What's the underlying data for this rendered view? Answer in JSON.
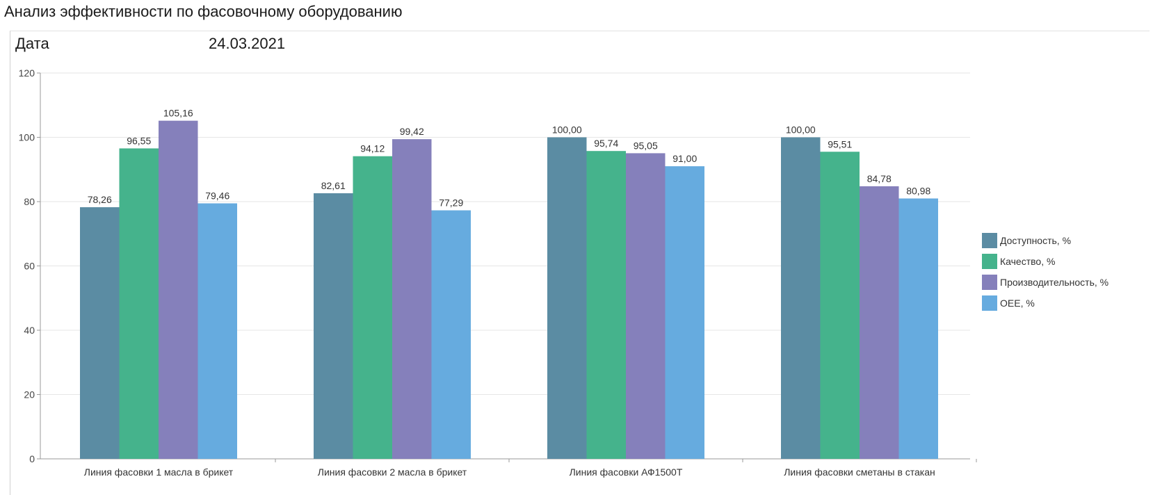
{
  "report": {
    "title": "Анализ эффективности по фасовочному оборудованию",
    "date_label": "Дата",
    "date_value": "24.03.2021"
  },
  "chart_data": {
    "type": "bar",
    "categories": [
      "Линия фасовки 1 масла в брикет",
      "Линия фасовки 2 масла в брикет",
      "Линия фасовки АФ1500Т",
      "Линия фасовки сметаны в стакан"
    ],
    "series": [
      {
        "name": "Доступность, %",
        "color": "#5b8ca3",
        "values": [
          78.26,
          82.61,
          100.0,
          100.0
        ],
        "labels": [
          "78,26",
          "82,61",
          "100,00",
          "100,00"
        ]
      },
      {
        "name": "Качество, %",
        "color": "#45b38c",
        "values": [
          96.55,
          94.12,
          95.74,
          95.51
        ],
        "labels": [
          "96,55",
          "94,12",
          "95,74",
          "95,51"
        ]
      },
      {
        "name": "Производительность, %",
        "color": "#8580bb",
        "values": [
          105.16,
          99.42,
          95.05,
          84.78
        ],
        "labels": [
          "105,16",
          "99,42",
          "95,05",
          "84,78"
        ]
      },
      {
        "name": "OEE, %",
        "color": "#66abdf",
        "values": [
          79.46,
          77.29,
          91.0,
          80.98
        ],
        "labels": [
          "79,46",
          "77,29",
          "91,00",
          "80,98"
        ]
      }
    ],
    "ylim": [
      0,
      120
    ],
    "yticks": [
      0,
      20,
      40,
      60,
      80,
      100,
      120
    ],
    "grid": true,
    "legend_position": "right"
  }
}
